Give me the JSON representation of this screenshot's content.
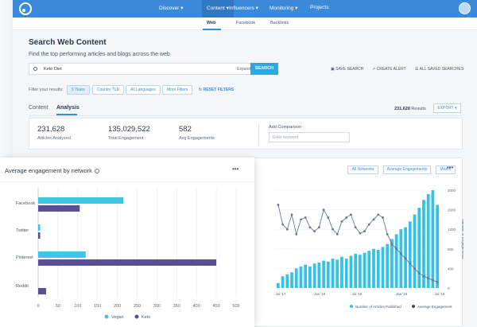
{
  "nav": {
    "items": [
      {
        "label": "Discover",
        "active": false
      },
      {
        "label": "Content",
        "active": true
      },
      {
        "label": "Influencers",
        "active": false
      },
      {
        "label": "Monitoring",
        "active": false
      },
      {
        "label": "Projects",
        "active": false
      }
    ]
  },
  "subnav": {
    "items": [
      "Web",
      "Facebook",
      "Backlinks"
    ],
    "active": "Web"
  },
  "page": {
    "title": "Search Web Content",
    "subtitle": "Find the top performing articles and blogs across the web"
  },
  "search": {
    "value": "Keto Diet",
    "expand_label": "Expand",
    "button": "SEARCH"
  },
  "actions": {
    "save": "SAVE SEARCH",
    "alert": "CREATE ALERT",
    "saved": "ALL SAVED SEARCHES"
  },
  "filters": {
    "label": "Filter your results:",
    "chips": [
      "5 Years",
      "Country TLD",
      "All Languages",
      "More Filters"
    ],
    "reset": "RESET FILTERS"
  },
  "tabs": {
    "items": [
      "Content",
      "Analysis"
    ],
    "active": "Analysis"
  },
  "results": {
    "count": "231,628",
    "label": "Results",
    "export": "EXPORT"
  },
  "stats": {
    "items": [
      {
        "value": "231,628",
        "label": "Articles Analyzed"
      },
      {
        "value": "135,029,522",
        "label": "Total Engagement"
      },
      {
        "value": "582",
        "label": "Avg Engagements"
      }
    ],
    "add_comparison_label": "Add Comparison",
    "add_comparison_placeholder": "Enter keyword"
  },
  "bg_chart": {
    "buttons": [
      "All Networks",
      "Average Engagements",
      "Month"
    ],
    "chart_data": {
      "type": "bar",
      "x_tick_labels": [
        "Jul '17",
        "Jan '18",
        "Jul '18",
        "Jan '19",
        "Jul '19"
      ],
      "y_right_ticks": [
        0,
        400,
        800,
        1200,
        1600,
        2000
      ],
      "y_right_label": "Number of Engagements",
      "legend": [
        "Number of Articles Published",
        "Average Engagement"
      ],
      "bars": [
        0.05,
        0.12,
        0.14,
        0.16,
        0.2,
        0.22,
        0.24,
        0.22,
        0.25,
        0.26,
        0.28,
        0.27,
        0.3,
        0.29,
        0.32,
        0.3,
        0.33,
        0.35,
        0.34,
        0.36,
        0.38,
        0.4,
        0.39,
        0.42,
        0.45,
        0.5,
        0.55,
        0.6,
        0.62,
        0.68,
        0.75,
        0.82,
        0.9,
        0.96,
        1.0,
        0.85
      ],
      "line": [
        0.85,
        0.65,
        0.6,
        0.75,
        0.55,
        0.7,
        0.72,
        0.62,
        0.58,
        0.62,
        0.8,
        0.72,
        0.6,
        0.55,
        0.68,
        0.72,
        0.75,
        0.62,
        0.56,
        0.58,
        0.65,
        0.7,
        0.75,
        0.72,
        0.55,
        0.45,
        0.4,
        0.35,
        0.3,
        0.25,
        0.2,
        0.15,
        0.12,
        0.1,
        0.08,
        0.06
      ],
      "bar_color": "#33c2e8",
      "line_color": "#6b7888"
    }
  },
  "panel": {
    "title": "Average engagement by network",
    "chart_data": {
      "type": "bar",
      "orientation": "horizontal",
      "categories": [
        "Facebook",
        "Twitter",
        "Pinterest",
        "Reddit"
      ],
      "series": [
        {
          "name": "Vegan",
          "values": [
            215,
            5,
            120,
            0
          ],
          "color": "#3ec7e3"
        },
        {
          "name": "Keto",
          "values": [
            105,
            5,
            450,
            20
          ],
          "color": "#5b4f96"
        }
      ],
      "xlim": [
        0,
        500
      ],
      "x_ticks": [
        0,
        50,
        100,
        150,
        200,
        250,
        300,
        350,
        400,
        450,
        500
      ]
    }
  }
}
